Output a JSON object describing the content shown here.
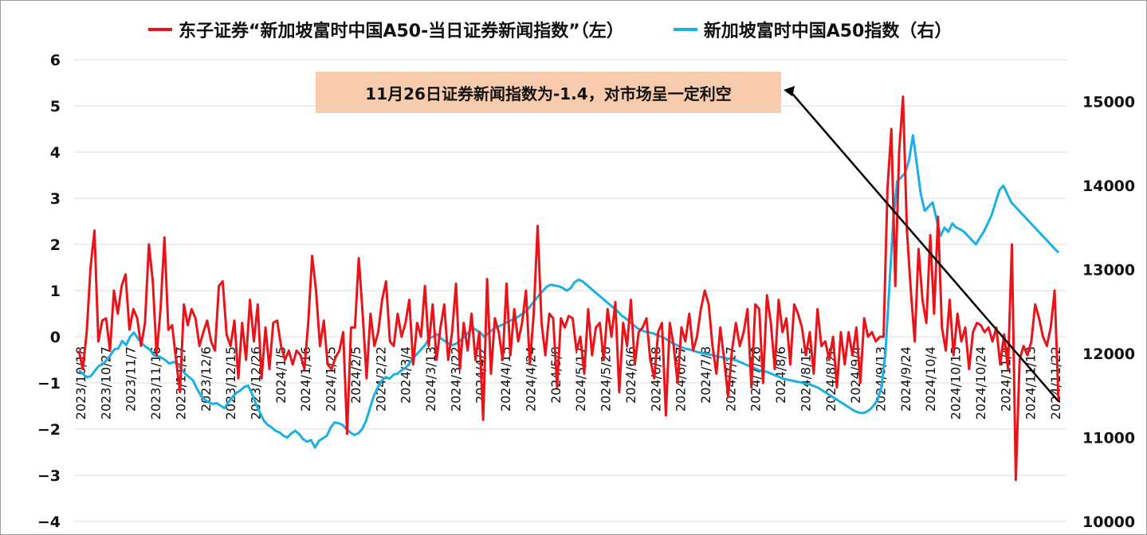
{
  "chart_data": {
    "type": "line",
    "legend_position": "top",
    "grid": true,
    "series": [
      {
        "name": "东子证券“新加坡富时中国A50-当日证券新闻指数”（左）",
        "axis": "left",
        "color": "#e8141a",
        "values": [
          -0.3,
          -0.7,
          0.1,
          1.5,
          2.3,
          -0.1,
          0.35,
          0.4,
          -0.3,
          1.0,
          0.5,
          1.1,
          1.35,
          0.15,
          0.6,
          0.4,
          -0.2,
          0.3,
          2.0,
          1.2,
          -0.4,
          0.6,
          2.15,
          0.15,
          0.25,
          -0.5,
          -1.2,
          0.7,
          0.25,
          0.6,
          0.4,
          -0.2,
          0.1,
          0.35,
          -0.1,
          -0.3,
          1.1,
          1.2,
          0.05,
          -0.2,
          0.35,
          -0.9,
          0.3,
          -0.5,
          0.8,
          -0.1,
          0.7,
          -0.9,
          0.2,
          -0.7,
          0.3,
          0.35,
          -0.2,
          -0.5,
          -0.3,
          -0.6,
          -0.3,
          -0.4,
          -0.7,
          0.3,
          1.75,
          1.0,
          -0.2,
          0.35,
          -0.6,
          -0.7,
          -0.45,
          -0.3,
          0.1,
          -2.1,
          0.2,
          0.2,
          1.7,
          0.5,
          -0.9,
          0.5,
          -0.2,
          0.1,
          0.8,
          1.2,
          -0.1,
          -0.2,
          0.5,
          0.0,
          0.3,
          0.8,
          -0.6,
          0.3,
          0.0,
          1.1,
          -0.2,
          0.7,
          -0.5,
          0.2,
          0.7,
          -0.5,
          0.1,
          1.15,
          -0.7,
          0.3,
          -0.3,
          0.5,
          -0.5,
          0.1,
          -1.8,
          1.25,
          -0.8,
          0.4,
          0.1,
          -0.5,
          1.15,
          -0.4,
          0.6,
          -0.1,
          0.3,
          1.0,
          -0.6,
          0.5,
          2.4,
          0.3,
          -0.4,
          0.5,
          0.4,
          -1.1,
          0.4,
          0.2,
          0.45,
          0.4,
          -0.3,
          0.0,
          -0.8,
          0.6,
          -0.4,
          0.2,
          0.3,
          -0.5,
          0.6,
          0.0,
          0.75,
          -1.2,
          0.3,
          -0.2,
          0.8,
          -0.6,
          0.1,
          0.2,
          0.4,
          -0.5,
          -0.9,
          0.1,
          0.3,
          -1.7,
          0.3,
          -0.2,
          -1.0,
          0.2,
          -0.1,
          0.5,
          -0.3,
          0.0,
          0.6,
          1.0,
          0.7,
          -0.2,
          -0.8,
          0.2,
          -0.5,
          -1.3,
          -0.3,
          0.3,
          -0.2,
          0.1,
          0.6,
          -1.1,
          0.7,
          0.6,
          -1.0,
          0.9,
          0.3,
          -0.7,
          0.8,
          0.1,
          0.4,
          -0.6,
          0.7,
          0.5,
          0.2,
          -0.4,
          0.1,
          -0.8,
          0.6,
          -0.2,
          -0.1,
          -0.5,
          0.0,
          -1.1,
          0.1,
          -0.6,
          0.1,
          -0.4,
          0.2,
          -1.0,
          0.4,
          0.0,
          0.1,
          -0.1,
          0.0,
          0.0,
          3.2,
          4.5,
          1.1,
          4.0,
          5.2,
          2.3,
          1.0,
          -0.1,
          1.9,
          0.8,
          0.3,
          2.2,
          0.5,
          2.6,
          0.2,
          -0.3,
          0.8,
          -0.4,
          0.5,
          -0.1,
          0.2,
          -0.7,
          0.1,
          0.3,
          0.25,
          0.1,
          0.2,
          -0.1,
          0.2,
          -0.6,
          0.05,
          -0.7,
          2.0,
          -3.1,
          -0.5,
          -0.2,
          -0.4,
          -0.1,
          0.7,
          0.4,
          0.0,
          -0.2,
          0.2,
          1.0,
          -1.4
        ]
      },
      {
        "name": "新加坡富时中国A50指数（右）",
        "axis": "right",
        "color": "#1ab0e6",
        "values": [
          11800,
          11760,
          11720,
          11730,
          11790,
          11850,
          11870,
          11920,
          11980,
          12050,
          12060,
          12150,
          12100,
          12200,
          12250,
          12180,
          12120,
          12080,
          12050,
          11980,
          11970,
          11950,
          11920,
          11880,
          11900,
          11880,
          11820,
          11760,
          11720,
          11680,
          11580,
          11500,
          11450,
          11420,
          11400,
          11410,
          11380,
          11350,
          11420,
          11480,
          11530,
          11560,
          11600,
          11620,
          11520,
          11400,
          11300,
          11200,
          11150,
          11120,
          11080,
          11060,
          11020,
          11000,
          11050,
          11080,
          11040,
          10980,
          10950,
          10970,
          10880,
          10960,
          10990,
          11020,
          11120,
          11180,
          11170,
          11150,
          11100,
          11060,
          11030,
          11050,
          11100,
          11200,
          11350,
          11500,
          11600,
          11680,
          11720,
          11700,
          11750,
          11760,
          11800,
          11830,
          11880,
          11950,
          12000,
          12050,
          12100,
          12180,
          12200,
          12230,
          12180,
          12150,
          12120,
          12100,
          12120,
          12160,
          12200,
          12250,
          12310,
          12280,
          12250,
          12200,
          12240,
          12280,
          12310,
          12330,
          12350,
          12380,
          12400,
          12420,
          12450,
          12480,
          12520,
          12580,
          12640,
          12700,
          12750,
          12800,
          12820,
          12810,
          12800,
          12780,
          12750,
          12780,
          12850,
          12880,
          12860,
          12820,
          12780,
          12740,
          12700,
          12660,
          12620,
          12580,
          12540,
          12500,
          12450,
          12420,
          12380,
          12340,
          12300,
          12280,
          12260,
          12250,
          12240,
          12220,
          12200,
          12180,
          12150,
          12120,
          12100,
          12080,
          12060,
          12050,
          12040,
          12020,
          12010,
          12000,
          11990,
          11980,
          11970,
          11960,
          11950,
          11940,
          11930,
          11920,
          11900,
          11880,
          11860,
          11840,
          11820,
          11800,
          11790,
          11780,
          11760,
          11740,
          11720,
          11700,
          11690,
          11680,
          11670,
          11660,
          11650,
          11640,
          11630,
          11610,
          11590,
          11560,
          11530,
          11500,
          11470,
          11440,
          11410,
          11380,
          11350,
          11320,
          11300,
          11290,
          11300,
          11330,
          11380,
          11450,
          11600,
          12000,
          12800,
          13600,
          14050,
          14100,
          14150,
          14300,
          14600,
          14250,
          13900,
          13700,
          13750,
          13800,
          13600,
          13400,
          13500,
          13450,
          13550,
          13500,
          13480,
          13450,
          13400,
          13350,
          13300,
          13380,
          13450,
          13550,
          13650,
          13800,
          13950,
          14000,
          13900,
          13800,
          13750,
          13700,
          13650,
          13600,
          13550,
          13500,
          13450,
          13400,
          13350,
          13300,
          13250,
          13200
        ]
      }
    ],
    "x_tick_labels": [
      "2023/10/18",
      "2023/10/27",
      "2023/11/7",
      "2023/11/16",
      "2023/11/27",
      "2023/12/6",
      "2023/12/15",
      "2023/12/26",
      "2024/1/5",
      "2024/1/16",
      "2024/1/25",
      "2024/2/5",
      "2024/2/22",
      "2024/3/4",
      "2024/3/13",
      "2024/3/22",
      "2024/4/2",
      "2024/4/15",
      "2024/4/24",
      "2024/5/8",
      "2024/5/17",
      "2024/5/28",
      "2024/6/6",
      "2024/6/18",
      "2024/6/27",
      "2024/7/8",
      "2024/7/17",
      "2024/7/26",
      "2024/8/6",
      "2024/8/15",
      "2024/8/26",
      "2024/9/4",
      "2024/9/13",
      "2024/9/24",
      "2024/10/4",
      "2024/10/15",
      "2024/10/24",
      "2024/11/4",
      "2024/11/13",
      "2024/11/22"
    ],
    "y_left": {
      "min": -4,
      "max": 6,
      "ticks": [
        "6",
        "5",
        "4",
        "3",
        "2",
        "1",
        "0",
        "−1",
        "−2",
        "−3",
        "−4"
      ]
    },
    "y_right": {
      "min": 10000,
      "max": 15500,
      "ticks": [
        "15000",
        "14000",
        "13000",
        "12000",
        "11000",
        "10000"
      ]
    },
    "annotation": "11月26日证券新闻指数为-1.4，对市场呈一定利空"
  }
}
